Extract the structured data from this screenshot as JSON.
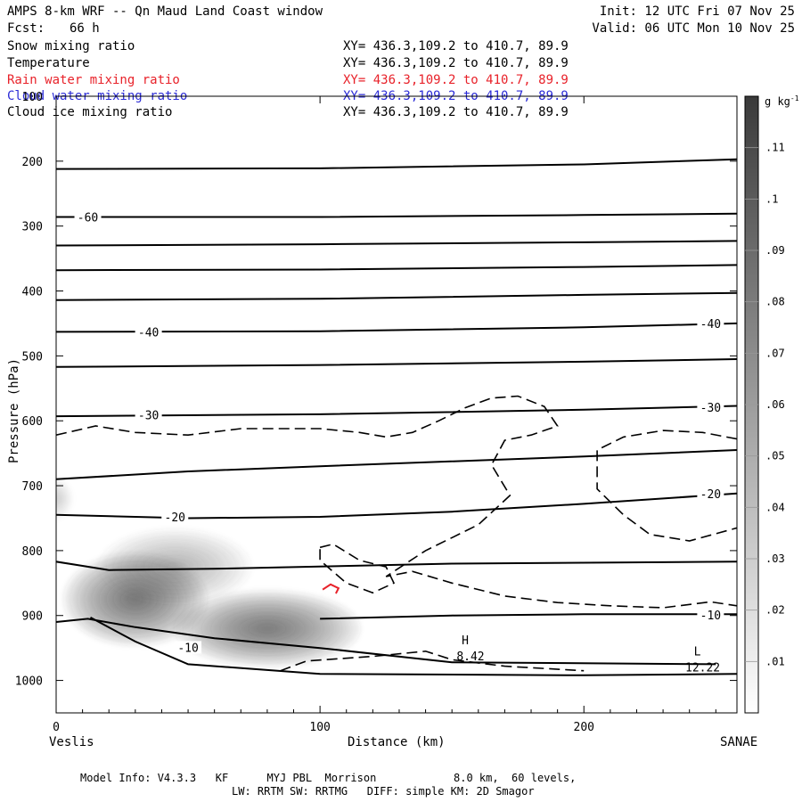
{
  "header": {
    "title": "AMPS 8-km WRF -- Qn Maud Land Coast window",
    "init": "Init: 12 UTC Fri 07 Nov 25",
    "fcst_label": "Fcst:",
    "fcst_value": "66 h",
    "valid": "Valid: 06 UTC Mon 10 Nov 25"
  },
  "legend": [
    {
      "name": "Snow mixing ratio",
      "xy": "XY= 436.3,109.2 to 410.7, 89.9",
      "color": "#000000"
    },
    {
      "name": "Temperature",
      "xy": "XY= 436.3,109.2 to 410.7, 89.9",
      "color": "#000000"
    },
    {
      "name": "Rain water mixing ratio",
      "xy": "XY= 436.3,109.2 to 410.7, 89.9",
      "color": "#e8222a"
    },
    {
      "name": "Cloud water mixing ratio",
      "xy": "XY= 436.3,109.2 to 410.7, 89.9",
      "color": "#2b2bd6"
    },
    {
      "name": "Cloud ice mixing ratio",
      "xy": "XY= 436.3,109.2 to 410.7, 89.9",
      "color": "#000000"
    }
  ],
  "footer": {
    "line1": "Model Info: V4.3.3   KF      MYJ PBL  Morrison            8.0 km,  60 levels,",
    "line2": "LW: RRTM SW: RRTMG   DIFF: simple KM: 2D Smagor"
  },
  "chart_data": {
    "type": "contour",
    "xlabel": "Distance (km)",
    "ylabel": "Pressure (hPa)",
    "xlim": [
      0,
      258
    ],
    "ylim": [
      1050,
      100
    ],
    "x_ticks": [
      0,
      100,
      200
    ],
    "y_ticks": [
      100,
      200,
      300,
      400,
      500,
      600,
      700,
      800,
      900,
      1000
    ],
    "endpoint_left": "Veslis",
    "endpoint_right": "SANAE",
    "colorbar": {
      "unit_label": "g kg",
      "unit_exp": "-1",
      "ticks": [
        ".01",
        ".02",
        ".03",
        ".04",
        ".05",
        ".06",
        ".07",
        ".08",
        ".09",
        ".1",
        ".11"
      ],
      "tick_values": [
        0.01,
        0.02,
        0.03,
        0.04,
        0.05,
        0.06,
        0.07,
        0.08,
        0.09,
        0.1,
        0.11
      ],
      "range": [
        0,
        0.12
      ]
    },
    "snow_maxima": [
      {
        "x": 30,
        "p": 875,
        "value": 0.1,
        "sx": 17,
        "sy": 55
      },
      {
        "x": 80,
        "p": 920,
        "value": 0.098,
        "sx": 22,
        "sy": 45
      },
      {
        "x": 45,
        "p": 825,
        "value": 0.05,
        "sx": 18,
        "sy": 45
      },
      {
        "x": 0,
        "p": 720,
        "value": 0.02,
        "sx": 4,
        "sy": 25
      }
    ],
    "isotherms": [
      {
        "label": "",
        "points": [
          [
            0,
            212
          ],
          [
            100,
            211
          ],
          [
            200,
            205
          ],
          [
            258,
            197
          ]
        ]
      },
      {
        "label": "-60",
        "label_at": [
          12,
          286
        ],
        "points": [
          [
            0,
            286
          ],
          [
            100,
            286
          ],
          [
            200,
            283
          ],
          [
            258,
            281
          ]
        ]
      },
      {
        "label": "",
        "points": [
          [
            0,
            330
          ],
          [
            100,
            328
          ],
          [
            200,
            325
          ],
          [
            258,
            323
          ]
        ]
      },
      {
        "label": "",
        "points": [
          [
            0,
            368
          ],
          [
            100,
            367
          ],
          [
            200,
            363
          ],
          [
            258,
            360
          ]
        ]
      },
      {
        "label": "",
        "points": [
          [
            0,
            414
          ],
          [
            100,
            412
          ],
          [
            200,
            406
          ],
          [
            258,
            403
          ]
        ]
      },
      {
        "label": "-40",
        "label_at": [
          35,
          463
        ],
        "label2": "-40",
        "label2_at": [
          248,
          450
        ],
        "points": [
          [
            0,
            463
          ],
          [
            100,
            462
          ],
          [
            200,
            456
          ],
          [
            258,
            450
          ]
        ]
      },
      {
        "label": "",
        "points": [
          [
            0,
            517
          ],
          [
            100,
            514
          ],
          [
            200,
            509
          ],
          [
            258,
            505
          ]
        ]
      },
      {
        "label": "-30",
        "label_at": [
          35,
          591
        ],
        "label2": "-30",
        "label2_at": [
          248,
          579
        ],
        "points": [
          [
            0,
            593
          ],
          [
            100,
            590
          ],
          [
            200,
            583
          ],
          [
            258,
            577
          ]
        ]
      },
      {
        "label": "",
        "points": [
          [
            0,
            690
          ],
          [
            50,
            678
          ],
          [
            100,
            670
          ],
          [
            200,
            655
          ],
          [
            258,
            645
          ]
        ]
      },
      {
        "label": "-20",
        "label_at": [
          45,
          748
        ],
        "label2": "-20",
        "label2_at": [
          248,
          712
        ],
        "points": [
          [
            0,
            745
          ],
          [
            50,
            750
          ],
          [
            100,
            748
          ],
          [
            150,
            740
          ],
          [
            200,
            728
          ],
          [
            258,
            712
          ]
        ]
      },
      {
        "label": "",
        "points": [
          [
            0,
            817
          ],
          [
            20,
            830
          ],
          [
            60,
            828
          ],
          [
            150,
            820
          ],
          [
            258,
            817
          ]
        ]
      },
      {
        "label": "-10",
        "label_at": [
          248,
          899
        ],
        "points": [
          [
            100,
            905
          ],
          [
            150,
            900
          ],
          [
            200,
            898
          ],
          [
            258,
            898
          ]
        ]
      },
      {
        "label": "-10",
        "label_at": [
          50,
          949
        ],
        "points": [
          [
            0,
            910
          ],
          [
            12,
            905
          ],
          [
            30,
            918
          ],
          [
            60,
            935
          ],
          [
            100,
            950
          ],
          [
            150,
            972
          ],
          [
            250,
            975
          ]
        ]
      },
      {
        "label": "",
        "points": [
          [
            13,
            903
          ],
          [
            30,
            940
          ],
          [
            50,
            975
          ],
          [
            100,
            990
          ],
          [
            200,
            992
          ],
          [
            258,
            990
          ]
        ]
      }
    ],
    "dashed_contours": [
      {
        "points": [
          [
            0,
            622
          ],
          [
            15,
            608
          ],
          [
            30,
            618
          ],
          [
            50,
            622
          ],
          [
            70,
            612
          ],
          [
            100,
            612
          ],
          [
            115,
            618
          ],
          [
            125,
            625
          ],
          [
            135,
            618
          ],
          [
            145,
            600
          ],
          [
            155,
            580
          ],
          [
            165,
            565
          ],
          [
            175,
            562
          ],
          [
            185,
            578
          ],
          [
            190,
            608
          ],
          [
            180,
            622
          ],
          [
            170,
            630
          ],
          [
            165,
            668
          ],
          [
            172,
            715
          ],
          [
            160,
            760
          ],
          [
            140,
            800
          ],
          [
            125,
            840
          ],
          [
            135,
            832
          ],
          [
            150,
            850
          ],
          [
            170,
            870
          ],
          [
            190,
            880
          ],
          [
            210,
            885
          ],
          [
            230,
            888
          ],
          [
            248,
            879
          ],
          [
            258,
            885
          ]
        ]
      },
      {
        "points": [
          [
            100,
            795
          ],
          [
            105,
            790
          ],
          [
            115,
            815
          ],
          [
            125,
            825
          ],
          [
            128,
            850
          ],
          [
            120,
            865
          ],
          [
            110,
            850
          ],
          [
            100,
            815
          ],
          [
            100,
            795
          ]
        ]
      },
      {
        "points": [
          [
            258,
            628
          ],
          [
            245,
            618
          ],
          [
            230,
            615
          ],
          [
            215,
            625
          ],
          [
            205,
            645
          ],
          [
            205,
            705
          ],
          [
            215,
            745
          ],
          [
            225,
            775
          ],
          [
            240,
            785
          ],
          [
            258,
            765
          ]
        ]
      },
      {
        "points": [
          [
            85,
            985
          ],
          [
            95,
            970
          ],
          [
            120,
            963
          ],
          [
            140,
            955
          ],
          [
            150,
            968
          ],
          [
            170,
            978
          ],
          [
            200,
            985
          ]
        ]
      }
    ],
    "rain_contour": {
      "points": [
        [
          101,
          860
        ],
        [
          104,
          852
        ],
        [
          107,
          858
        ],
        [
          106,
          866
        ]
      ]
    },
    "extrema": [
      {
        "label": "H",
        "value": "8.42",
        "x": 155,
        "p": 950
      },
      {
        "label": "L",
        "value": "12.22",
        "x": 243,
        "p": 967
      }
    ]
  }
}
